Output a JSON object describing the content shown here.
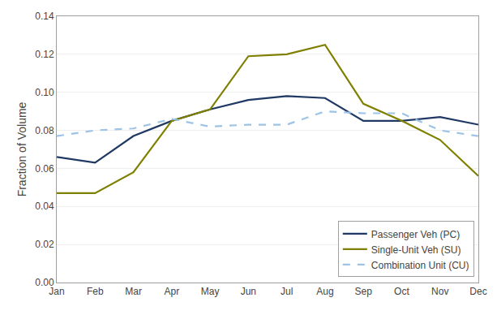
{
  "chart_data": {
    "type": "line",
    "categories": [
      "Jan",
      "Feb",
      "Mar",
      "Apr",
      "May",
      "Jun",
      "Jul",
      "Aug",
      "Sep",
      "Oct",
      "Nov",
      "Dec"
    ],
    "series": [
      {
        "name": "Passenger Veh (PC)",
        "color": "#1f3864",
        "line_style": "solid",
        "values": [
          0.066,
          0.063,
          0.077,
          0.085,
          0.091,
          0.096,
          0.098,
          0.097,
          0.085,
          0.085,
          0.087,
          0.083
        ]
      },
      {
        "name": "Single-Unit Veh (SU)",
        "color": "#7f7f00",
        "line_style": "solid",
        "values": [
          0.047,
          0.047,
          0.058,
          0.085,
          0.091,
          0.119,
          0.12,
          0.125,
          0.094,
          0.085,
          0.075,
          0.056
        ]
      },
      {
        "name": "Combination Unit (CU)",
        "color": "#9dc3e6",
        "line_style": "dashed",
        "values": [
          0.077,
          0.08,
          0.081,
          0.086,
          0.082,
          0.083,
          0.083,
          0.09,
          0.089,
          0.089,
          0.08,
          0.077
        ]
      }
    ],
    "ylabel": "Fraction of Volume",
    "ylim": [
      0.0,
      0.14
    ],
    "yticks": [
      {
        "value": 0,
        "label": "0.00"
      },
      0.02,
      0.04,
      0.06,
      0.08,
      {
        "value": 0.1,
        "label": "0.10"
      },
      0.12,
      0.14
    ],
    "grid": true,
    "legend": "lower right"
  }
}
